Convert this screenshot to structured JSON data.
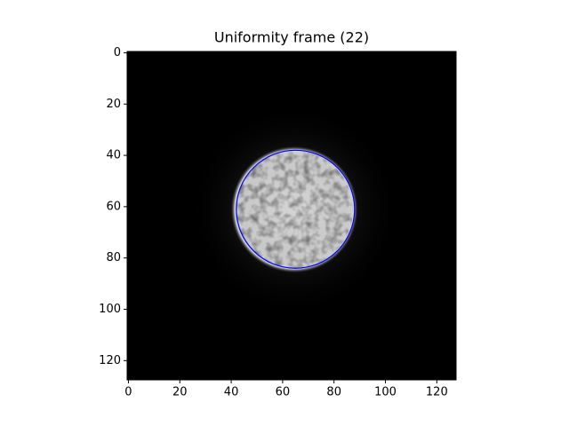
{
  "chart_data": {
    "type": "image",
    "title": "Uniformity frame (22)",
    "xlim": [
      -0.5,
      127.5
    ],
    "ylim": [
      127.5,
      -0.5
    ],
    "xticks": [
      0,
      20,
      40,
      60,
      80,
      100,
      120
    ],
    "yticks": [
      0,
      20,
      40,
      60,
      80,
      100,
      120
    ],
    "circle": {
      "cx": 65,
      "cy": 61,
      "r": 23,
      "color": "#0000ff"
    }
  }
}
